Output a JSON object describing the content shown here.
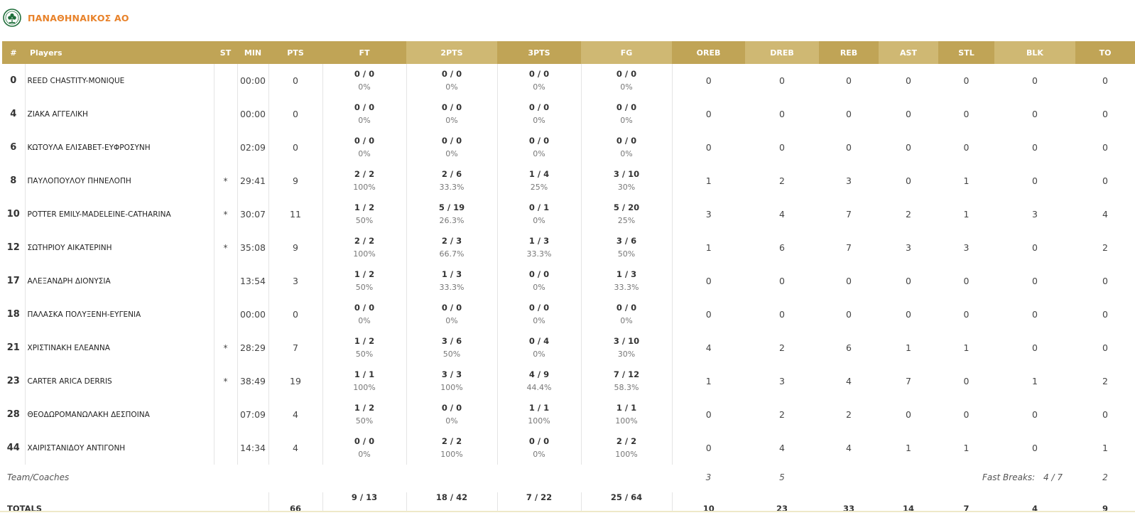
{
  "team": {
    "name": "ΠΑΝΑΘΗΝΑΙΚΟΣ ΑΟ",
    "logo_icon": "clover-crest-icon",
    "accent": "#e8822a",
    "header_gold": "#c0a456"
  },
  "columns": {
    "num": "#",
    "players": "Players",
    "st": "ST",
    "min": "MIN",
    "pts": "PTS",
    "ft": "FT",
    "two": "2PTS",
    "three": "3PTS",
    "fg": "FG",
    "oreb": "OREB",
    "dreb": "DREB",
    "reb": "REB",
    "ast": "AST",
    "stl": "STL",
    "blk": "BLK",
    "to": "TO"
  },
  "players": [
    {
      "num": "0",
      "name": "REED CHASTITY-MONIQUE",
      "st": "",
      "min": "00:00",
      "pts": "0",
      "ft": "0 / 0",
      "ft_pct": "0%",
      "two": "0 / 0",
      "two_pct": "0%",
      "three": "0 / 0",
      "three_pct": "0%",
      "fg": "0 / 0",
      "fg_pct": "0%",
      "oreb": "0",
      "dreb": "0",
      "reb": "0",
      "ast": "0",
      "stl": "0",
      "blk": "0",
      "to": "0"
    },
    {
      "num": "4",
      "name": "ΖΙΑΚΑ ΑΓΓΕΛΙΚΗ",
      "st": "",
      "min": "00:00",
      "pts": "0",
      "ft": "0 / 0",
      "ft_pct": "0%",
      "two": "0 / 0",
      "two_pct": "0%",
      "three": "0 / 0",
      "three_pct": "0%",
      "fg": "0 / 0",
      "fg_pct": "0%",
      "oreb": "0",
      "dreb": "0",
      "reb": "0",
      "ast": "0",
      "stl": "0",
      "blk": "0",
      "to": "0"
    },
    {
      "num": "6",
      "name": "ΚΩΤΟΥΛΑ ΕΛΙΣΑΒΕΤ-ΕΥΦΡΟΣΥΝΗ",
      "st": "",
      "min": "02:09",
      "pts": "0",
      "ft": "0 / 0",
      "ft_pct": "0%",
      "two": "0 / 0",
      "two_pct": "0%",
      "three": "0 / 0",
      "three_pct": "0%",
      "fg": "0 / 0",
      "fg_pct": "0%",
      "oreb": "0",
      "dreb": "0",
      "reb": "0",
      "ast": "0",
      "stl": "0",
      "blk": "0",
      "to": "0"
    },
    {
      "num": "8",
      "name": "ΠΑΥΛΟΠΟΥΛΟΥ ΠΗΝΕΛΟΠΗ",
      "st": "*",
      "min": "29:41",
      "pts": "9",
      "ft": "2 / 2",
      "ft_pct": "100%",
      "two": "2 / 6",
      "two_pct": "33.3%",
      "three": "1 / 4",
      "three_pct": "25%",
      "fg": "3 / 10",
      "fg_pct": "30%",
      "oreb": "1",
      "dreb": "2",
      "reb": "3",
      "ast": "0",
      "stl": "1",
      "blk": "0",
      "to": "0"
    },
    {
      "num": "10",
      "name": "POTTER EMILY-MADELEINE-CATHARINA",
      "st": "*",
      "min": "30:07",
      "pts": "11",
      "ft": "1 / 2",
      "ft_pct": "50%",
      "two": "5 / 19",
      "two_pct": "26.3%",
      "three": "0 / 1",
      "three_pct": "0%",
      "fg": "5 / 20",
      "fg_pct": "25%",
      "oreb": "3",
      "dreb": "4",
      "reb": "7",
      "ast": "2",
      "stl": "1",
      "blk": "3",
      "to": "4"
    },
    {
      "num": "12",
      "name": "ΣΩΤΗΡΙΟΥ ΑΙΚΑΤΕΡΙΝΗ",
      "st": "*",
      "min": "35:08",
      "pts": "9",
      "ft": "2 / 2",
      "ft_pct": "100%",
      "two": "2 / 3",
      "two_pct": "66.7%",
      "three": "1 / 3",
      "three_pct": "33.3%",
      "fg": "3 / 6",
      "fg_pct": "50%",
      "oreb": "1",
      "dreb": "6",
      "reb": "7",
      "ast": "3",
      "stl": "3",
      "blk": "0",
      "to": "2"
    },
    {
      "num": "17",
      "name": "ΑΛΕΞΑΝΔΡΗ ΔΙΟΝΥΣΙΑ",
      "st": "",
      "min": "13:54",
      "pts": "3",
      "ft": "1 / 2",
      "ft_pct": "50%",
      "two": "1 / 3",
      "two_pct": "33.3%",
      "three": "0 / 0",
      "three_pct": "0%",
      "fg": "1 / 3",
      "fg_pct": "33.3%",
      "oreb": "0",
      "dreb": "0",
      "reb": "0",
      "ast": "0",
      "stl": "0",
      "blk": "0",
      "to": "0"
    },
    {
      "num": "18",
      "name": "ΠΑΛΑΣΚΑ ΠΟΛΥΞΕΝΗ-ΕΥΓΕΝΙΑ",
      "st": "",
      "min": "00:00",
      "pts": "0",
      "ft": "0 / 0",
      "ft_pct": "0%",
      "two": "0 / 0",
      "two_pct": "0%",
      "three": "0 / 0",
      "three_pct": "0%",
      "fg": "0 / 0",
      "fg_pct": "0%",
      "oreb": "0",
      "dreb": "0",
      "reb": "0",
      "ast": "0",
      "stl": "0",
      "blk": "0",
      "to": "0"
    },
    {
      "num": "21",
      "name": "ΧΡΙΣΤΙΝΑΚΗ ΕΛΕΑΝΝΑ",
      "st": "*",
      "min": "28:29",
      "pts": "7",
      "ft": "1 / 2",
      "ft_pct": "50%",
      "two": "3 / 6",
      "two_pct": "50%",
      "three": "0 / 4",
      "three_pct": "0%",
      "fg": "3 / 10",
      "fg_pct": "30%",
      "oreb": "4",
      "dreb": "2",
      "reb": "6",
      "ast": "1",
      "stl": "1",
      "blk": "0",
      "to": "0"
    },
    {
      "num": "23",
      "name": "CARTER ARICA DERRIS",
      "st": "*",
      "min": "38:49",
      "pts": "19",
      "ft": "1 / 1",
      "ft_pct": "100%",
      "two": "3 / 3",
      "two_pct": "100%",
      "three": "4 / 9",
      "three_pct": "44.4%",
      "fg": "7 / 12",
      "fg_pct": "58.3%",
      "oreb": "1",
      "dreb": "3",
      "reb": "4",
      "ast": "7",
      "stl": "0",
      "blk": "1",
      "to": "2"
    },
    {
      "num": "28",
      "name": "ΘΕΟΔΩΡΟΜΑΝΩΛΑΚΗ ΔΕΣΠΟΙΝΑ",
      "st": "",
      "min": "07:09",
      "pts": "4",
      "ft": "1 / 2",
      "ft_pct": "50%",
      "two": "0 / 0",
      "two_pct": "0%",
      "three": "1 / 1",
      "three_pct": "100%",
      "fg": "1 / 1",
      "fg_pct": "100%",
      "oreb": "0",
      "dreb": "2",
      "reb": "2",
      "ast": "0",
      "stl": "0",
      "blk": "0",
      "to": "0"
    },
    {
      "num": "44",
      "name": "ΧΑΙΡΙΣΤΑΝΙΔΟΥ ΑΝΤΙΓΟΝΗ",
      "st": "",
      "min": "14:34",
      "pts": "4",
      "ft": "0 / 0",
      "ft_pct": "0%",
      "two": "2 / 2",
      "two_pct": "100%",
      "three": "0 / 0",
      "three_pct": "0%",
      "fg": "2 / 2",
      "fg_pct": "100%",
      "oreb": "0",
      "dreb": "4",
      "reb": "4",
      "ast": "1",
      "stl": "1",
      "blk": "0",
      "to": "1"
    }
  ],
  "team_row": {
    "label": "Team/Coaches",
    "oreb": "3",
    "dreb": "5",
    "fast_breaks_label": "Fast Breaks:",
    "fast_breaks_value": "4 / 7",
    "to": "2"
  },
  "totals": {
    "label": "TOTALS",
    "pts": "66",
    "ft": "9 / 13",
    "two": "18 / 42",
    "three": "7 / 22",
    "fg": "25 / 64",
    "oreb": "10",
    "dreb": "23",
    "reb": "33",
    "ast": "14",
    "stl": "7",
    "blk": "4",
    "to": "9"
  }
}
